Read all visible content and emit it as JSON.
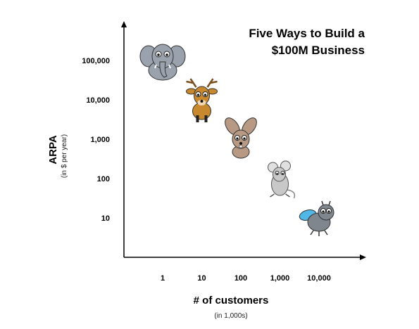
{
  "chart_data": {
    "type": "scatter",
    "title_lines": [
      "Five Ways to Build a",
      "$100M Business"
    ],
    "xlabel": "# of customers",
    "xlabel_sub": "(in 1,000s)",
    "ylabel": "ARPA",
    "ylabel_sub": "(in $ per year)",
    "x_scale": "log",
    "y_scale": "log",
    "x_ticks": [
      {
        "value": 1,
        "label": "1"
      },
      {
        "value": 10,
        "label": "10"
      },
      {
        "value": 100,
        "label": "100"
      },
      {
        "value": 1000,
        "label": "1,000"
      },
      {
        "value": 10000,
        "label": "10,000"
      }
    ],
    "y_ticks": [
      {
        "value": 10,
        "label": "10"
      },
      {
        "value": 100,
        "label": "100"
      },
      {
        "value": 1000,
        "label": "1,000"
      },
      {
        "value": 10000,
        "label": "10,000"
      },
      {
        "value": 100000,
        "label": "100,000"
      }
    ],
    "points": [
      {
        "name": "elephant",
        "x": 1,
        "y": 100000,
        "color": "#9aa3ad"
      },
      {
        "name": "deer",
        "x": 10,
        "y": 10000,
        "color": "#c8892e"
      },
      {
        "name": "rabbit",
        "x": 100,
        "y": 1000,
        "color": "#b89a84"
      },
      {
        "name": "mouse",
        "x": 1000,
        "y": 100,
        "color": "#c8c8c8"
      },
      {
        "name": "fly",
        "x": 10000,
        "y": 10,
        "color": "#7f868d"
      }
    ],
    "grid": false,
    "legend": "none"
  }
}
